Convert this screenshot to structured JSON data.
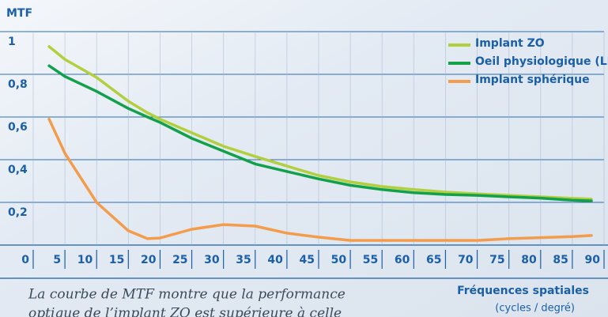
{
  "chart_data": {
    "type": "line",
    "y_label": "MTF",
    "x_label": "Fréquences spatiales",
    "x_unit": "(cycles / degré)",
    "caption": [
      "La courbe de MTF montre que la performance",
      "optique de l’implant ZO est supérieure à celle"
    ],
    "x": [
      2.5,
      5,
      10,
      15,
      18,
      20,
      25,
      30,
      35,
      40,
      45,
      50,
      55,
      60,
      65,
      70,
      75,
      80,
      85,
      88
    ],
    "series": [
      {
        "name": "Implant ZO",
        "color": "#b2cf3e",
        "values": [
          0.93,
          0.87,
          0.785,
          0.674,
          0.62,
          0.59,
          0.526,
          0.463,
          0.415,
          0.37,
          0.326,
          0.296,
          0.274,
          0.26,
          0.248,
          0.24,
          0.233,
          0.226,
          0.219,
          0.215
        ]
      },
      {
        "name": "Oeil physiologique (LBE)",
        "color": "#13a04a",
        "values": [
          0.84,
          0.79,
          0.72,
          0.64,
          0.6,
          0.575,
          0.5,
          0.44,
          0.38,
          0.345,
          0.31,
          0.28,
          0.26,
          0.245,
          0.237,
          0.233,
          0.226,
          0.22,
          0.21,
          0.207
        ]
      },
      {
        "name": "Implant sphérique",
        "color": "#f39c4b",
        "values": [
          0.59,
          0.43,
          0.2,
          0.067,
          0.03,
          0.033,
          0.074,
          0.096,
          0.089,
          0.056,
          0.037,
          0.022,
          0.022,
          0.022,
          0.022,
          0.022,
          0.03,
          0.035,
          0.04,
          0.045
        ]
      }
    ],
    "xlim": [
      0,
      90
    ],
    "xticks": [
      0,
      5,
      10,
      15,
      20,
      25,
      30,
      35,
      40,
      45,
      50,
      55,
      60,
      65,
      70,
      75,
      80,
      85,
      90
    ],
    "ylim": [
      0,
      1
    ],
    "yticks": [
      {
        "value": 0.2,
        "label": "0,2"
      },
      {
        "value": 0.4,
        "label": "0,4"
      },
      {
        "value": 0.6,
        "label": "0,6"
      },
      {
        "value": 0.8,
        "label": "0,8"
      },
      1
    ],
    "grid": true,
    "legend": "upper right"
  }
}
